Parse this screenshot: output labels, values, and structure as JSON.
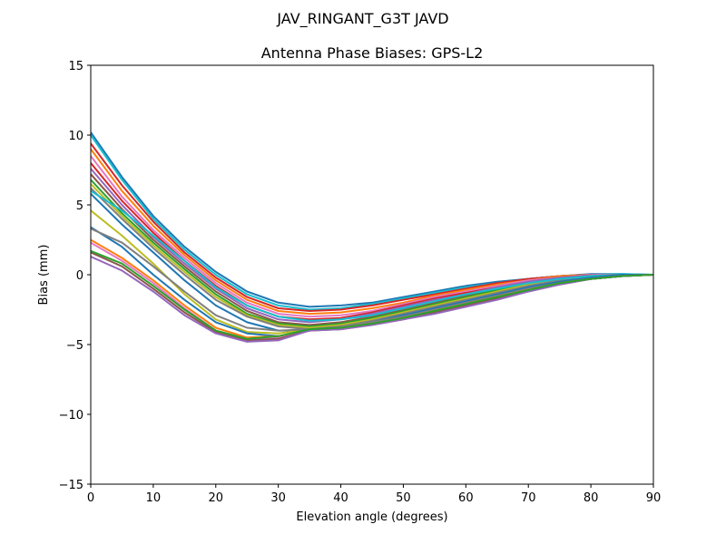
{
  "chart_data": {
    "type": "line",
    "suptitle": "JAV_RINGANT_G3T JAVD",
    "title": "Antenna Phase Biases: GPS-L2",
    "xlabel": "Elevation angle (degrees)",
    "ylabel": "Bias (mm)",
    "xlim": [
      0,
      90
    ],
    "ylim": [
      -15,
      15
    ],
    "xticks": [
      0,
      10,
      20,
      30,
      40,
      50,
      60,
      70,
      80,
      90
    ],
    "yticks": [
      -15,
      -10,
      -5,
      0,
      5,
      10,
      15
    ],
    "xtick_labels": [
      "0",
      "10",
      "20",
      "30",
      "40",
      "50",
      "60",
      "70",
      "80",
      "90"
    ],
    "ytick_labels": [
      "−15",
      "−10",
      "−5",
      "0",
      "5",
      "10",
      "15"
    ],
    "grid": false,
    "legend": "none",
    "x": [
      0,
      5,
      10,
      15,
      20,
      25,
      30,
      35,
      40,
      45,
      50,
      55,
      60,
      65,
      70,
      75,
      80,
      85,
      90
    ],
    "series": [
      {
        "color": "#1f77b4",
        "values": [
          10.2,
          7.0,
          4.2,
          2.0,
          0.2,
          -1.2,
          -2.0,
          -2.3,
          -2.2,
          -2.0,
          -1.6,
          -1.2,
          -0.8,
          -0.5,
          -0.3,
          -0.1,
          0.05,
          0.05,
          0.0
        ]
      },
      {
        "color": "#17becf",
        "values": [
          10.0,
          6.8,
          4.0,
          1.8,
          0.0,
          -1.4,
          -2.2,
          -2.5,
          -2.4,
          -2.1,
          -1.7,
          -1.3,
          -0.9,
          -0.6,
          -0.3,
          -0.1,
          0.0,
          0.05,
          0.0
        ]
      },
      {
        "color": "#d62728",
        "values": [
          9.4,
          6.4,
          3.8,
          1.6,
          -0.2,
          -1.6,
          -2.4,
          -2.6,
          -2.5,
          -2.2,
          -1.8,
          -1.4,
          -1.0,
          -0.6,
          -0.3,
          -0.1,
          0.0,
          0.0,
          0.0
        ]
      },
      {
        "color": "#ff7f0e",
        "values": [
          9.0,
          6.0,
          3.5,
          1.4,
          -0.4,
          -1.8,
          -2.6,
          -2.8,
          -2.7,
          -2.4,
          -2.0,
          -1.5,
          -1.1,
          -0.7,
          -0.4,
          -0.1,
          0.0,
          0.0,
          0.0
        ]
      },
      {
        "color": "#e377c2",
        "values": [
          8.5,
          5.6,
          3.2,
          1.2,
          -0.6,
          -2.0,
          -2.8,
          -3.0,
          -2.9,
          -2.6,
          -2.1,
          -1.6,
          -1.2,
          -0.8,
          -0.4,
          -0.2,
          0.0,
          0.0,
          0.0
        ]
      },
      {
        "color": "#d62728",
        "values": [
          8.0,
          5.3,
          3.0,
          1.0,
          -0.8,
          -2.2,
          -3.0,
          -3.2,
          -3.1,
          -2.7,
          -2.2,
          -1.7,
          -1.3,
          -0.9,
          -0.5,
          -0.2,
          -0.05,
          0.0,
          0.0
        ]
      },
      {
        "color": "#9467bd",
        "values": [
          7.6,
          5.0,
          2.7,
          0.8,
          -1.0,
          -2.4,
          -3.2,
          -3.4,
          -3.2,
          -2.8,
          -2.3,
          -1.8,
          -1.4,
          -0.9,
          -0.5,
          -0.2,
          -0.05,
          0.0,
          0.0
        ]
      },
      {
        "color": "#8c564b",
        "values": [
          7.2,
          4.7,
          2.5,
          0.6,
          -1.2,
          -2.6,
          -3.4,
          -3.6,
          -3.4,
          -3.0,
          -2.5,
          -2.0,
          -1.5,
          -1.0,
          -0.6,
          -0.3,
          -0.1,
          0.0,
          0.0
        ]
      },
      {
        "color": "#2ca02c",
        "values": [
          6.8,
          4.4,
          2.3,
          0.4,
          -1.4,
          -2.8,
          -3.5,
          -3.7,
          -3.5,
          -3.1,
          -2.6,
          -2.1,
          -1.6,
          -1.1,
          -0.7,
          -0.3,
          -0.1,
          0.0,
          0.0
        ]
      },
      {
        "color": "#bcbd22",
        "values": [
          6.5,
          4.2,
          2.1,
          0.2,
          -1.6,
          -2.9,
          -3.6,
          -3.8,
          -3.6,
          -3.2,
          -2.7,
          -2.2,
          -1.7,
          -1.2,
          -0.7,
          -0.4,
          -0.1,
          0.0,
          0.0
        ]
      },
      {
        "color": "#7f7f7f",
        "values": [
          6.2,
          4.0,
          1.9,
          0.0,
          -1.8,
          -3.0,
          -3.7,
          -3.9,
          -3.7,
          -3.3,
          -2.8,
          -2.3,
          -1.8,
          -1.3,
          -0.8,
          -0.4,
          -0.15,
          0.0,
          0.0
        ]
      },
      {
        "color": "#17becf",
        "values": [
          6.0,
          4.6,
          2.8,
          1.0,
          -0.9,
          -2.2,
          -3.0,
          -3.3,
          -3.2,
          -2.9,
          -2.4,
          -1.9,
          -1.4,
          -1.0,
          -0.6,
          -0.3,
          -0.1,
          0.0,
          0.0
        ]
      },
      {
        "color": "#1f77b4",
        "values": [
          5.8,
          3.6,
          1.6,
          -0.4,
          -2.2,
          -3.4,
          -4.0,
          -4.0,
          -3.8,
          -3.4,
          -2.9,
          -2.4,
          -1.9,
          -1.4,
          -0.9,
          -0.5,
          -0.2,
          0.0,
          0.0
        ]
      },
      {
        "color": "#bcbd22",
        "values": [
          4.6,
          2.8,
          0.8,
          -1.4,
          -3.2,
          -4.1,
          -4.2,
          -3.9,
          -3.8,
          -3.5,
          -3.1,
          -2.6,
          -2.1,
          -1.6,
          -1.1,
          -0.6,
          -0.3,
          -0.1,
          0.0
        ]
      },
      {
        "color": "#1f77b4",
        "values": [
          3.4,
          2.0,
          0.0,
          -1.8,
          -3.4,
          -4.2,
          -4.4,
          -4.0,
          -3.8,
          -3.5,
          -3.1,
          -2.6,
          -2.1,
          -1.6,
          -1.1,
          -0.6,
          -0.3,
          -0.1,
          0.0
        ]
      },
      {
        "color": "#7f7f7f",
        "values": [
          3.3,
          2.3,
          0.6,
          -1.2,
          -2.9,
          -3.8,
          -4.0,
          -3.9,
          -3.7,
          -3.4,
          -3.0,
          -2.5,
          -2.0,
          -1.5,
          -1.0,
          -0.6,
          -0.3,
          -0.1,
          0.0
        ]
      },
      {
        "color": "#ff7f0e",
        "values": [
          2.5,
          1.2,
          -0.4,
          -2.2,
          -3.8,
          -4.5,
          -4.4,
          -4.0,
          -3.8,
          -3.5,
          -3.1,
          -2.6,
          -2.1,
          -1.6,
          -1.1,
          -0.6,
          -0.3,
          -0.1,
          0.0
        ]
      },
      {
        "color": "#e377c2",
        "values": [
          2.3,
          1.0,
          -0.6,
          -2.4,
          -4.0,
          -4.6,
          -4.5,
          -4.0,
          -3.8,
          -3.5,
          -3.1,
          -2.7,
          -2.2,
          -1.7,
          -1.1,
          -0.7,
          -0.3,
          -0.1,
          0.0
        ]
      },
      {
        "color": "#8c564b",
        "values": [
          1.6,
          0.6,
          -1.0,
          -2.7,
          -4.1,
          -4.7,
          -4.6,
          -4.0,
          -3.9,
          -3.6,
          -3.2,
          -2.7,
          -2.2,
          -1.7,
          -1.2,
          -0.7,
          -0.3,
          -0.1,
          0.0
        ]
      },
      {
        "color": "#9467bd",
        "values": [
          1.3,
          0.3,
          -1.2,
          -2.9,
          -4.2,
          -4.8,
          -4.7,
          -4.0,
          -3.9,
          -3.6,
          -3.2,
          -2.8,
          -2.3,
          -1.8,
          -1.2,
          -0.7,
          -0.3,
          -0.1,
          0.0
        ]
      },
      {
        "color": "#2ca02c",
        "values": [
          1.7,
          0.8,
          -0.8,
          -2.5,
          -4.0,
          -4.6,
          -4.4,
          -3.9,
          -3.8,
          -3.5,
          -3.1,
          -2.6,
          -2.1,
          -1.6,
          -1.1,
          -0.6,
          -0.3,
          -0.1,
          0.0
        ]
      }
    ]
  }
}
